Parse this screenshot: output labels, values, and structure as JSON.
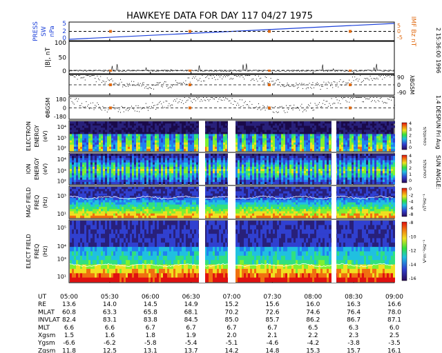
{
  "title": "HAWKEYE DATA FOR DAY 117 04/27 1975",
  "side_note": "2 15:36:00 1996",
  "side_note2": "1.4 DESPUN Fri Aug",
  "sun_angle_label": "SUN ANGLE:",
  "colors": {
    "pressure": "#1a3fd9",
    "imf": "#e06a10",
    "black": "#000000",
    "spectrogram_bg": "#1a0a4a"
  },
  "time_axis": {
    "ticks": [
      "05:00",
      "05:30",
      "06:00",
      "06:30",
      "07:00",
      "07:30",
      "08:00",
      "08:30",
      "09:00"
    ]
  },
  "chart_data": [
    {
      "type": "line",
      "panel": "press-sw",
      "ylabel_lines": [
        "PRESS",
        "SW",
        "nPa"
      ],
      "right_label": "IMF Bz nT",
      "yticks_left": [
        "5",
        "2",
        "0"
      ],
      "yticks_right": [
        "5",
        "0",
        "-5"
      ],
      "ylim": [
        0,
        6
      ],
      "series": [
        {
          "x": [
            "05:00",
            "09:00"
          ],
          "values": [
            0.2,
            6.0
          ]
        }
      ]
    },
    {
      "type": "line",
      "panel": "b-magnitude",
      "ylabel": "|B|, nT",
      "yticks": [
        "100",
        "50",
        "0"
      ],
      "ylim": [
        0,
        100
      ]
    },
    {
      "type": "scatter",
      "panel": "lambda-bgsm",
      "right_label": "λBGSM",
      "yticks": [
        "90",
        "0",
        "-90"
      ],
      "ylim": [
        -90,
        90
      ]
    },
    {
      "type": "scatter",
      "panel": "phi-bgsm",
      "ylabel": "ΦBGSM",
      "yticks": [
        "180",
        "0",
        "-180"
      ],
      "ylim": [
        -180,
        180
      ]
    },
    {
      "type": "heatmap",
      "panel": "electron",
      "ylabel_lines": [
        "ELECTRON",
        "ENERGY",
        "(eV)"
      ],
      "yticks": [
        "10⁴",
        "10³",
        "10²"
      ],
      "colorbar_ticks": [
        "4",
        "3",
        "2",
        "1",
        "0"
      ],
      "colorbar_label": "counts/s"
    },
    {
      "type": "heatmap",
      "panel": "ion",
      "ylabel_lines": [
        "ION",
        "ENERGY",
        "(eV)"
      ],
      "yticks": [
        "10⁴",
        "10³",
        "10²"
      ],
      "colorbar_ticks": [
        "4",
        "3",
        "2",
        "1",
        "0"
      ],
      "colorbar_label": "counts/s"
    },
    {
      "type": "heatmap",
      "panel": "mag-field",
      "ylabel_lines": [
        "MAG FIELD",
        "FREQ",
        "(Hz)"
      ],
      "yticks": [
        "10³",
        "10¹"
      ],
      "colorbar_ticks": [
        "0",
        "-2",
        "-4",
        "-6",
        "-8"
      ],
      "colorbar_label": "nT²Hz⁻¹"
    },
    {
      "type": "heatmap",
      "panel": "elect-field",
      "ylabel_lines": [
        "ELECT FIELD",
        "FREQ",
        "(Hz)"
      ],
      "yticks": [
        "10⁵",
        "10⁴",
        "10³",
        "10¹"
      ],
      "colorbar_ticks": [
        "-8",
        "-10",
        "-12",
        "-14",
        "-16"
      ],
      "colorbar_label": "V²m⁻²Hz⁻¹"
    },
    {
      "type": "table",
      "panel": "ephemeris",
      "rows": [
        {
          "label": "UT",
          "values": [
            "05:00",
            "05:30",
            "06:00",
            "06:30",
            "07:00",
            "07:30",
            "08:00",
            "08:30",
            "09:00"
          ]
        },
        {
          "label": "RE",
          "values": [
            "13.6",
            "14.0",
            "14.5",
            "14.9",
            "15.2",
            "15.6",
            "16.0",
            "16.3",
            "16.6"
          ]
        },
        {
          "label": "MLAT",
          "values": [
            "60.8",
            "63.3",
            "65.8",
            "68.1",
            "70.2",
            "72.6",
            "74.6",
            "76.4",
            "78.0"
          ]
        },
        {
          "label": "INVLAT",
          "values": [
            "82.4",
            "83.1",
            "83.8",
            "84.5",
            "85.0",
            "85.7",
            "86.2",
            "86.7",
            "87.1"
          ]
        },
        {
          "label": "MLT",
          "values": [
            "6.6",
            "6.6",
            "6.7",
            "6.7",
            "6.7",
            "6.7",
            "6.5",
            "6.3",
            "6.0"
          ]
        },
        {
          "label": "Xgsm",
          "values": [
            "1.5",
            "1.6",
            "1.8",
            "1.9",
            "2.0",
            "2.1",
            "2.2",
            "2.3",
            "2.5"
          ]
        },
        {
          "label": "Ygsm",
          "values": [
            "-6.6",
            "-6.2",
            "-5.8",
            "-5.4",
            "-5.1",
            "-4.6",
            "-4.2",
            "-3.8",
            "-3.5"
          ]
        },
        {
          "label": "Zgsm",
          "values": [
            "11.8",
            "12.5",
            "13.1",
            "13.7",
            "14.2",
            "14.8",
            "15.3",
            "15.7",
            "16.1"
          ]
        }
      ]
    }
  ]
}
